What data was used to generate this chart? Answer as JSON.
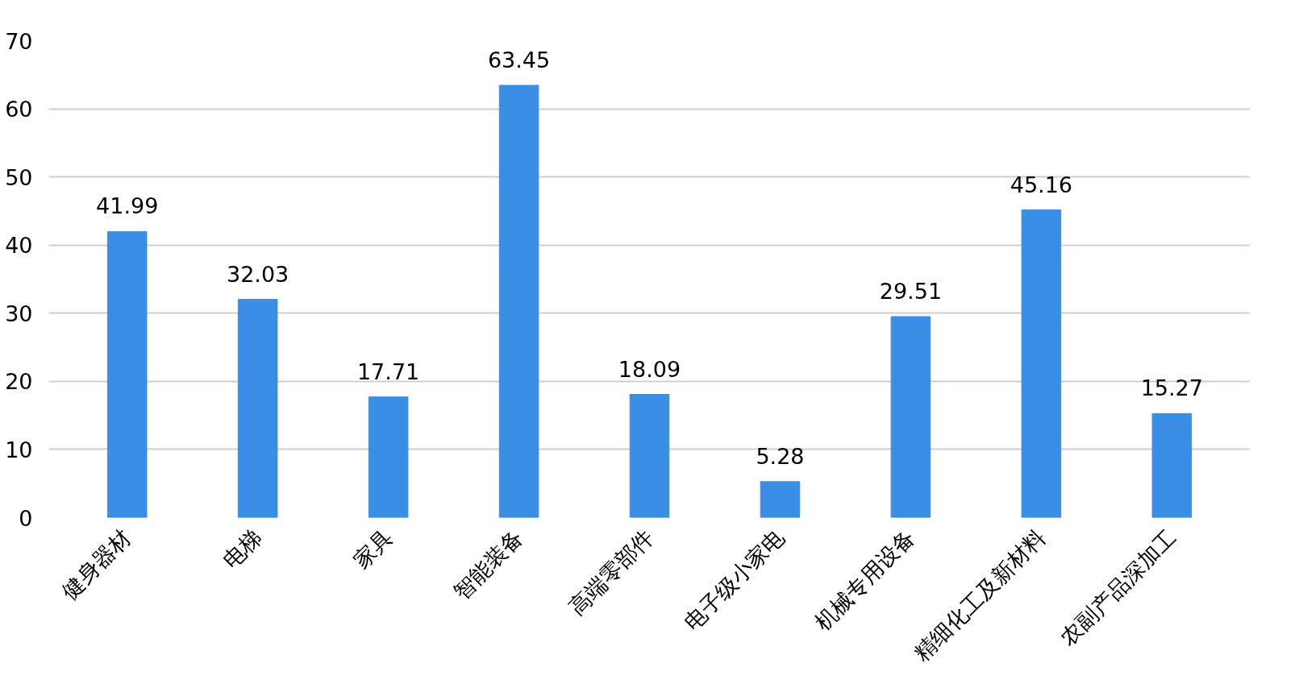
{
  "chart_data": {
    "type": "bar",
    "categories": [
      "健身器材",
      "电梯",
      "家具",
      "智能装备",
      "高端零部件",
      "电子级小家电",
      "机械专用设备",
      "精细化工及新材料",
      "农副产品深加工"
    ],
    "values": [
      41.99,
      32.03,
      17.71,
      63.45,
      18.09,
      5.28,
      29.51,
      45.16,
      15.27
    ],
    "color": "#3a8ee6",
    "ylim": [
      0,
      70
    ],
    "yticks": [
      0,
      10,
      20,
      30,
      40,
      50,
      60,
      70
    ],
    "grid": "y",
    "data_labels": true
  }
}
